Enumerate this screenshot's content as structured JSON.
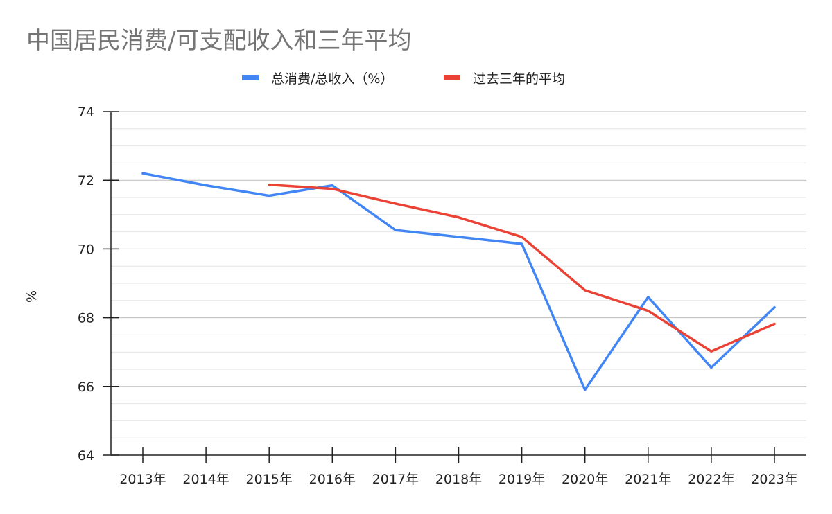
{
  "chart_data": {
    "type": "line",
    "title": "中国居民消费/可支配收入和三年平均",
    "xlabel": "",
    "ylabel": "%",
    "categories": [
      "2013年",
      "2014年",
      "2015年",
      "2016年",
      "2017年",
      "2018年",
      "2019年",
      "2020年",
      "2021年",
      "2022年",
      "2023年"
    ],
    "ylim": [
      64,
      74
    ],
    "yticks": [
      "64",
      "66",
      "68",
      "70",
      "72",
      "74"
    ],
    "grid": true,
    "legend_position": "top",
    "series": [
      {
        "name": "总消费/总收入（%）",
        "color": "#4285f4",
        "values": [
          72.2,
          71.85,
          71.55,
          71.85,
          70.55,
          70.35,
          70.15,
          65.9,
          68.6,
          66.55,
          68.3
        ]
      },
      {
        "name": "过去三年的平均",
        "color": "#ea4335",
        "values": [
          null,
          null,
          71.87,
          71.75,
          71.32,
          70.92,
          70.35,
          68.8,
          68.2,
          67.02,
          67.82
        ]
      }
    ]
  }
}
